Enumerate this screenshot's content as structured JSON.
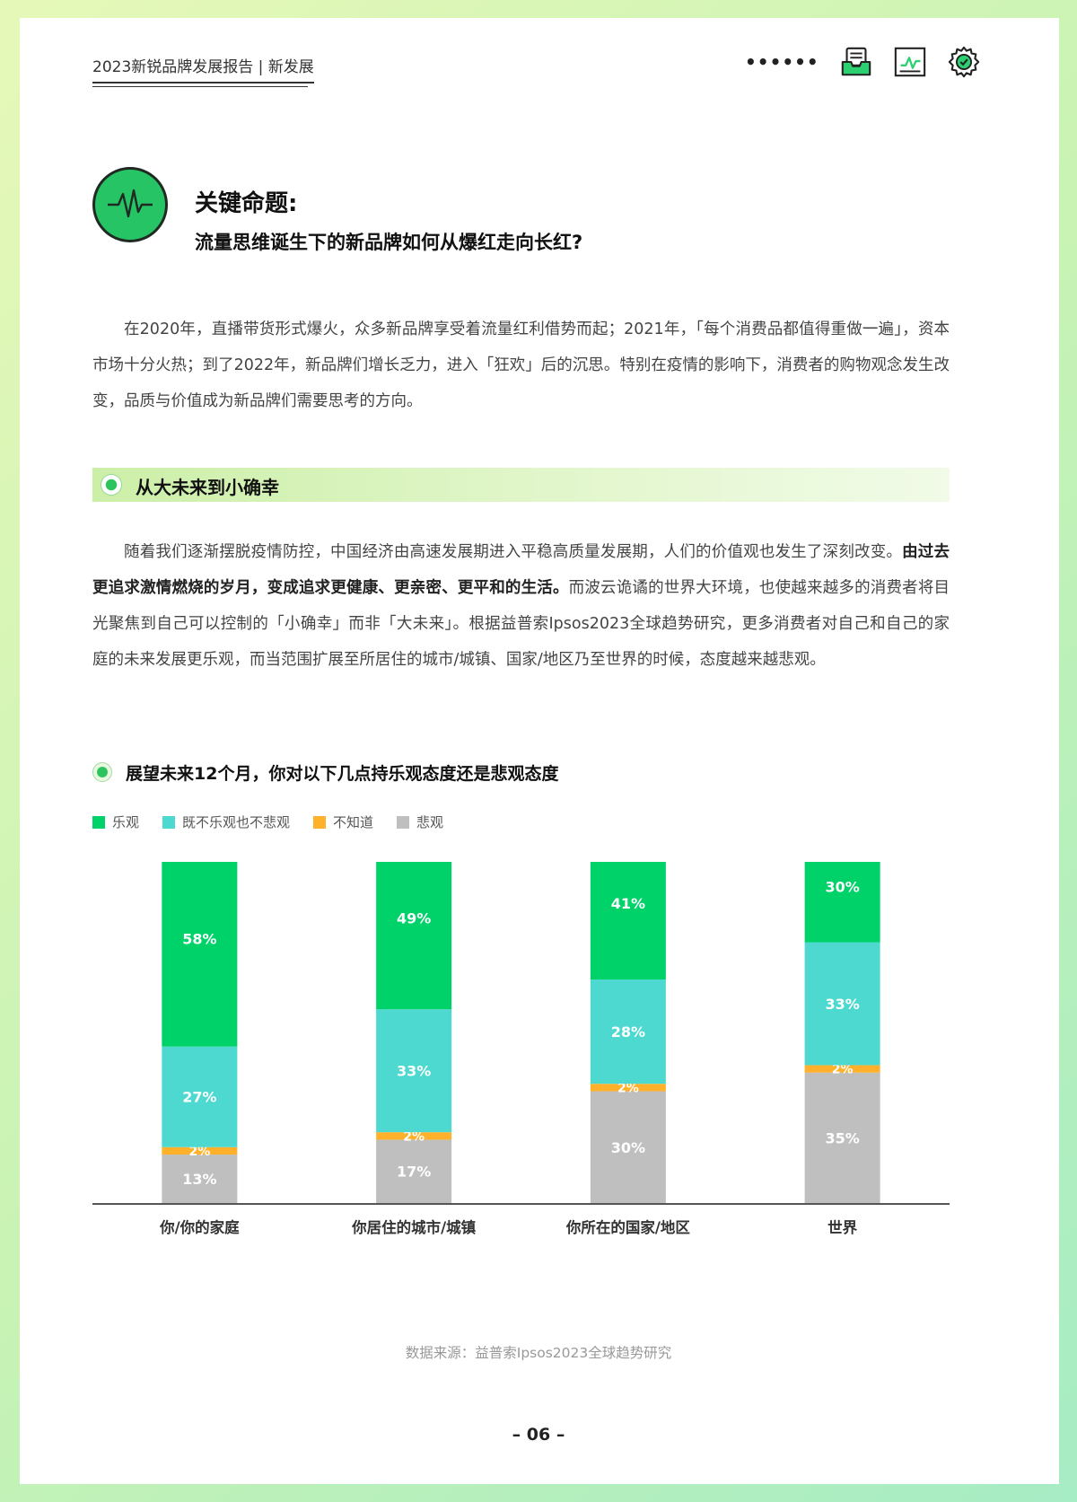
{
  "header": {
    "title": "2023新锐品牌发展报告 | 新发展",
    "dots": "••••••"
  },
  "key_topic": {
    "label": "关键命题:",
    "question": "流量思维诞生下的新品牌如何从爆红走向长红?"
  },
  "intro_paragraph": "在2020年，直播带货形式爆火，众多新品牌享受着流量红利借势而起；2021年，「每个消费品都值得重做一遍」，资本市场十分火热；到了2022年，新品牌们增长乏力，进入「狂欢」后的沉思。特别在疫情的影响下，消费者的购物观念发生改变，品质与价值成为新品牌们需要思考的方向。",
  "section": {
    "title": "从大未来到小确幸",
    "paragraph_part1": "随着我们逐渐摆脱疫情防控，中国经济由高速发展期进入平稳高质量发展期，人们的价值观也发生了深刻改变。",
    "paragraph_bold": "由过去更追求激情燃烧的岁月，变成追求更健康、更亲密、更平和的生活。",
    "paragraph_part2": "而波云诡谲的世界大环境，也使越来越多的消费者将目光聚焦到自己可以控制的「小确幸」而非「大未来」。根据益普索Ipsos2023全球趋势研究，更多消费者对自己和自己的家庭的未来发展更乐观，而当范围扩展至所居住的城市/城镇、国家/地区乃至世界的时候，态度越来越悲观。"
  },
  "chart_data": {
    "type": "bar",
    "stacked": true,
    "title": "展望未来12个月，你对以下几点持乐观态度还是悲观态度",
    "categories": [
      "你/你的家庭",
      "你居住的城市/城镇",
      "你所在的国家/地区",
      "世界"
    ],
    "series": [
      {
        "name": "乐观",
        "color": "#00d26a",
        "values": [
          58,
          49,
          41,
          30
        ]
      },
      {
        "name": "既不乐观也不悲观",
        "color": "#4dd9cf",
        "values": [
          27,
          33,
          28,
          33
        ]
      },
      {
        "name": "不知道",
        "color": "#ffb12b",
        "values": [
          2,
          2,
          2,
          2
        ]
      },
      {
        "name": "悲观",
        "color": "#bfbfbf",
        "values": [
          13,
          17,
          30,
          35
        ]
      }
    ],
    "legend_position": "top-left",
    "grid": false,
    "ylim": [
      0,
      100
    ]
  },
  "source": "数据来源：益普索Ipsos2023全球趋势研究",
  "page_number": "– 06 –"
}
